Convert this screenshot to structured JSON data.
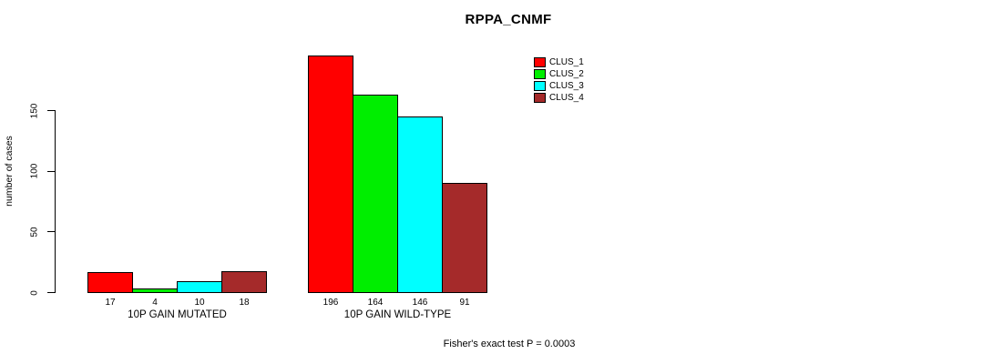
{
  "chart_data": {
    "type": "bar",
    "title": "RPPA_CNMF",
    "xlabel": "",
    "ylabel": "number of cases",
    "categories": [
      "10P GAIN MUTATED",
      "10P GAIN WILD-TYPE"
    ],
    "series": [
      {
        "name": "CLUS_1",
        "color": "#ff0000",
        "values": [
          17,
          196
        ]
      },
      {
        "name": "CLUS_2",
        "color": "#00ee00",
        "values": [
          4,
          164
        ]
      },
      {
        "name": "CLUS_3",
        "color": "#00ffff",
        "values": [
          10,
          146
        ]
      },
      {
        "name": "CLUS_4",
        "color": "#a52a2a",
        "values": [
          18,
          91
        ]
      }
    ],
    "yticks": [
      0,
      50,
      100,
      150
    ],
    "ylim": [
      0,
      196
    ],
    "grid": false,
    "bar_border_color": "#000000",
    "legend_position": "top-right",
    "footnote": "Fisher's exact test P = 0.0003"
  }
}
